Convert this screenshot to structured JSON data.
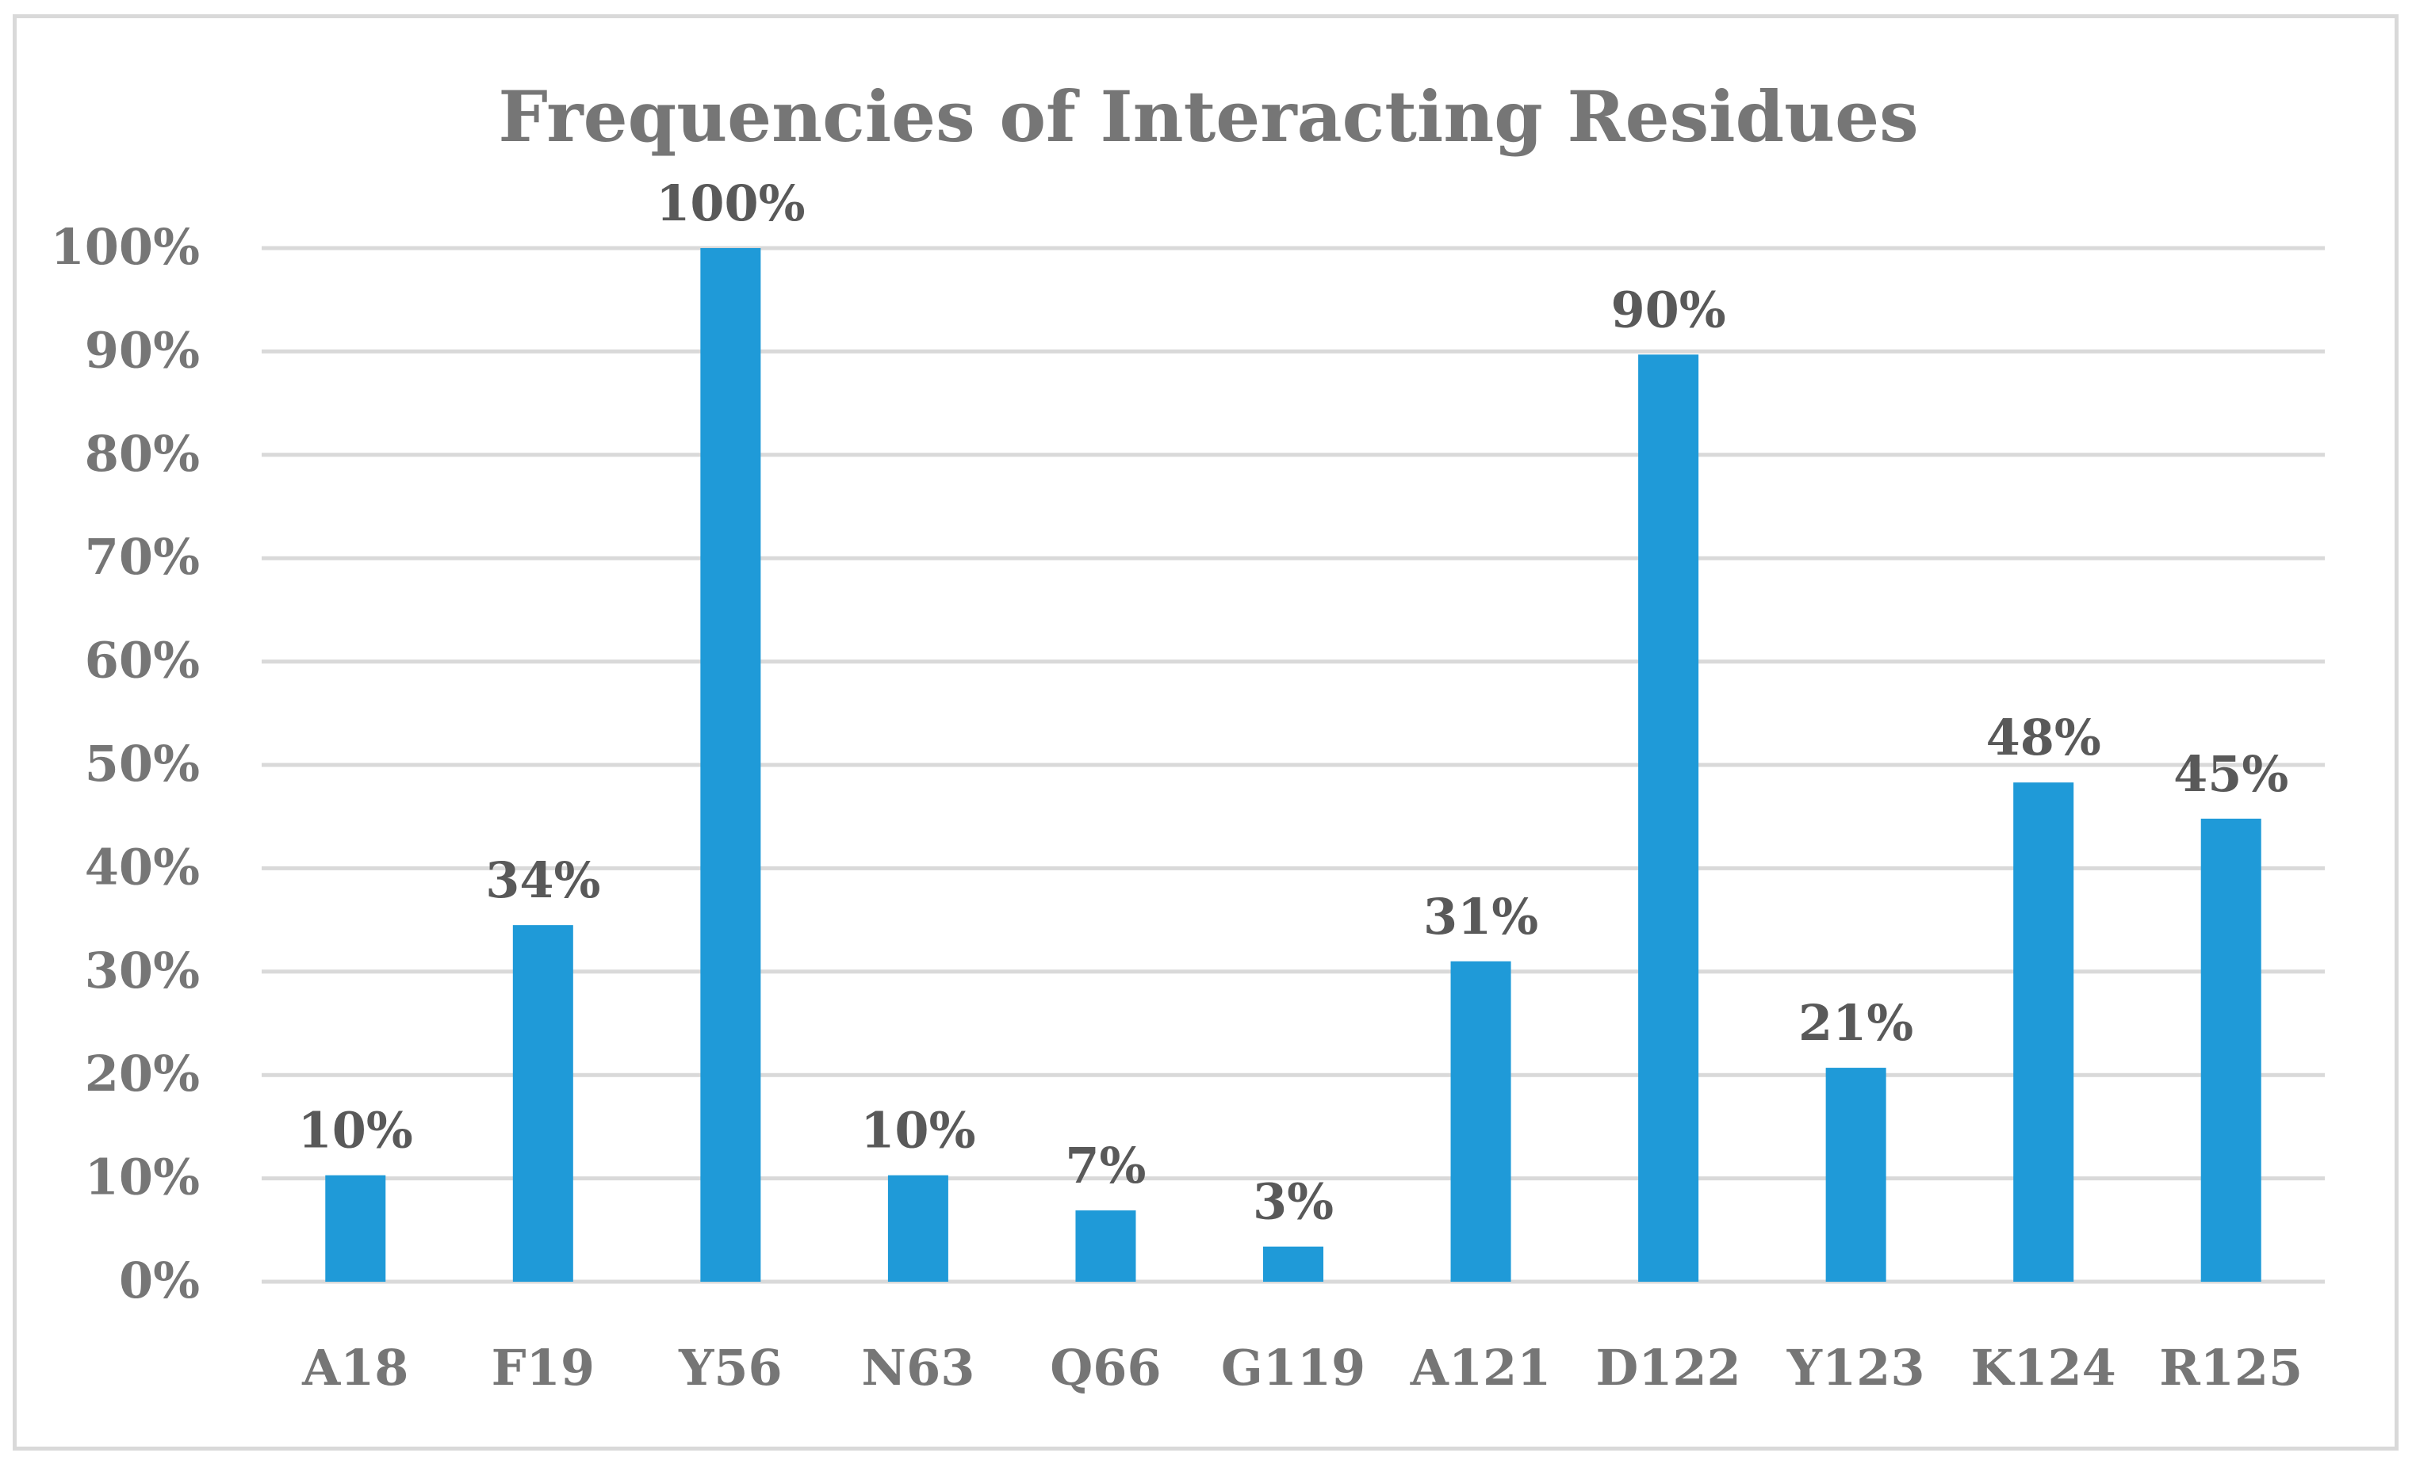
{
  "chart_data": {
    "type": "bar",
    "title": "Frequencies of Interacting Residues",
    "xlabel": "",
    "ylabel": "",
    "categories": [
      "A18",
      "F19",
      "Y56",
      "N63",
      "Q66",
      "G119",
      "A121",
      "D122",
      "Y123",
      "K124",
      "R125"
    ],
    "values": [
      10.3,
      34.5,
      100,
      10.3,
      6.9,
      3.4,
      31.0,
      89.7,
      20.7,
      48.3,
      44.8
    ],
    "data_labels": [
      "10%",
      "34%",
      "100%",
      "10%",
      "7%",
      "3%",
      "31%",
      "90%",
      "21%",
      "48%",
      "45%"
    ],
    "ylim": [
      0,
      100
    ],
    "yticks": [
      0,
      10,
      20,
      30,
      40,
      50,
      60,
      70,
      80,
      90,
      100
    ],
    "ytick_labels": [
      "0%",
      "10%",
      "20%",
      "30%",
      "40%",
      "50%",
      "60%",
      "70%",
      "80%",
      "90%",
      "100%"
    ],
    "grid": true,
    "legend": "none",
    "colors": {
      "bar": "#1f9ad8",
      "grid": "#d9d9d9",
      "axis_text": "#767676",
      "label_text": "#595959"
    }
  }
}
